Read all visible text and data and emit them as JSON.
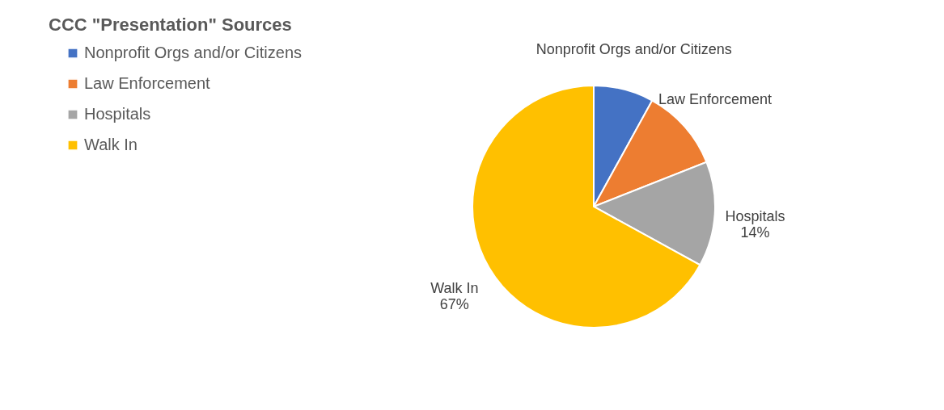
{
  "chart_data": {
    "type": "pie",
    "title": "CCC \"Presentation\" Sources",
    "categories": [
      "Nonprofit Orgs and/or Citizens",
      "Law Enforcement",
      "Hospitals",
      "Walk In"
    ],
    "values": [
      8,
      11,
      14,
      67
    ],
    "colors": [
      "#4472c4",
      "#ed7d31",
      "#a5a5a5",
      "#ffc000"
    ],
    "value_labels": [
      null,
      null,
      "14%",
      "67%"
    ],
    "legend": "left"
  }
}
